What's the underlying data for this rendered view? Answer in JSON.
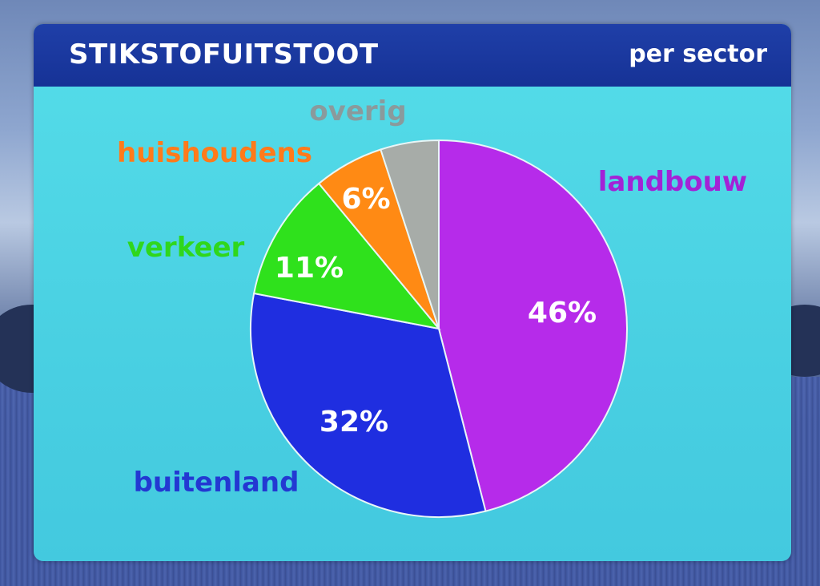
{
  "title": "STIKSTOFUITSTOOT",
  "subtitle": "per sector",
  "chart_data": {
    "type": "pie",
    "title": "STIKSTOFUITSTOOT",
    "subtitle": "per sector",
    "slices": [
      {
        "label": "landbouw",
        "value": 46,
        "value_label": "46%",
        "color": "#b62bea",
        "label_color": "#a322d6"
      },
      {
        "label": "buitenland",
        "value": 32,
        "value_label": "32%",
        "color": "#1f2ee0",
        "label_color": "#2338d2"
      },
      {
        "label": "verkeer",
        "value": 11,
        "value_label": "11%",
        "color": "#2fe11c",
        "label_color": "#2fd71c"
      },
      {
        "label": "huishoudens",
        "value": 6,
        "value_label": "6%",
        "color": "#ff8a14",
        "label_color": "#ff7a1a"
      },
      {
        "label": "overig",
        "value": 5,
        "value_label": "",
        "color": "#a7aca8",
        "label_color": "#8a9a9c"
      }
    ]
  }
}
